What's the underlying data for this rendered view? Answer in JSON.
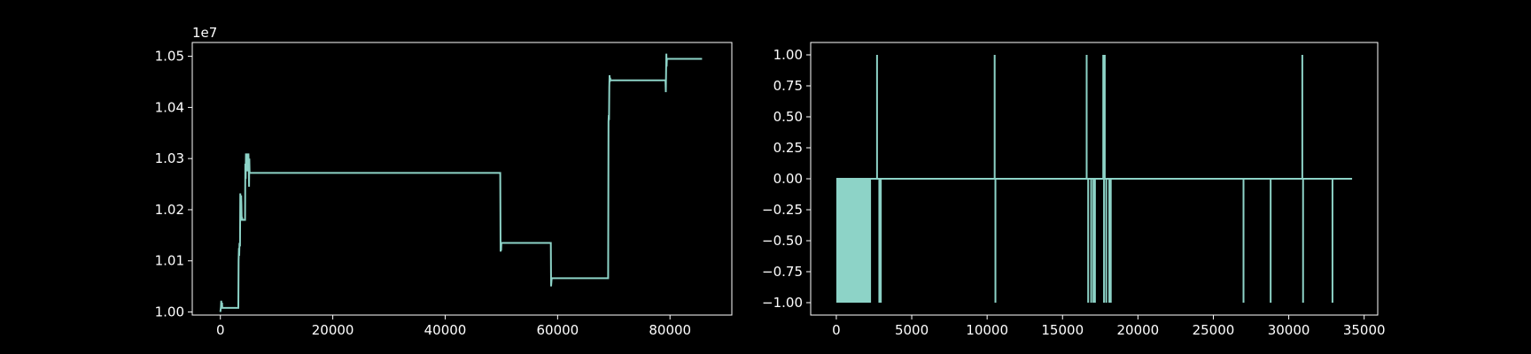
{
  "chart_data": [
    {
      "type": "line",
      "color": "#8dd3c7",
      "grid": false,
      "xlim": [
        -5000,
        91000
      ],
      "ylim": [
        9994000,
        10527000
      ],
      "y_offset_label": "1e7",
      "x_ticks": [
        0,
        20000,
        40000,
        60000,
        80000
      ],
      "x_tick_labels": [
        "0",
        "20000",
        "40000",
        "60000",
        "80000"
      ],
      "y_ticks": [
        10000000,
        10100000,
        10200000,
        10300000,
        10400000,
        10500000
      ],
      "y_tick_labels": [
        "1.00",
        "1.01",
        "1.02",
        "1.03",
        "1.04",
        "1.05"
      ],
      "series": [
        {
          "x": [
            0,
            100,
            150,
            250,
            300,
            350,
            3200,
            3250,
            3300,
            3350,
            3400,
            3450,
            3500,
            3550,
            3600,
            3700,
            3750,
            3800,
            3850,
            3900,
            3950,
            4000,
            4400,
            4450,
            4500,
            4550,
            4600,
            4650,
            4700,
            4750,
            4800,
            4850,
            4900,
            5000,
            5050,
            5100,
            5150,
            5200,
            5250,
            5300,
            5350,
            5400,
            5450,
            5500,
            5550,
            49800,
            49850,
            49900,
            49950,
            50000,
            58800,
            58850,
            58900,
            58950,
            59000,
            69000,
            69050,
            69100,
            69150,
            69200,
            69250,
            69300,
            69350,
            69400,
            69450,
            69500,
            79200,
            79250,
            79300,
            79350,
            79400,
            79450,
            79500,
            79550,
            79600,
            85700
          ],
          "y": [
            10000000,
            10010000,
            10022000,
            10008000,
            10018000,
            10008000,
            10008000,
            10100000,
            10125000,
            10110000,
            10135000,
            10130000,
            10130000,
            10232000,
            10200000,
            10228000,
            10210000,
            10180000,
            10180000,
            10182000,
            10180000,
            10180000,
            10180000,
            10290000,
            10260000,
            10310000,
            10300000,
            10300000,
            10310000,
            10275000,
            10300000,
            10305000,
            10285000,
            10310000,
            10280000,
            10245000,
            10300000,
            10272000,
            10272000,
            10272000,
            10272000,
            10272000,
            10272000,
            10272000,
            10272000,
            10272000,
            10118000,
            10132000,
            10120000,
            10135000,
            10135000,
            10050000,
            10060000,
            10066000,
            10066000,
            10066000,
            10372000,
            10385000,
            10375000,
            10440000,
            10463000,
            10450000,
            10458000,
            10453000,
            10453000,
            10453000,
            10453000,
            10430000,
            10470000,
            10505000,
            10480000,
            10495000,
            10495000,
            10495000,
            10495000,
            10495000
          ]
        }
      ]
    },
    {
      "type": "line",
      "color": "#8dd3c7",
      "grid": false,
      "xlim": [
        -1700,
        35900
      ],
      "ylim": [
        -1.1,
        1.1
      ],
      "x_ticks": [
        0,
        5000,
        10000,
        15000,
        20000,
        25000,
        30000,
        35000
      ],
      "x_tick_labels": [
        "0",
        "5000",
        "10000",
        "15000",
        "20000",
        "25000",
        "30000",
        "35000"
      ],
      "y_ticks": [
        1.0,
        0.75,
        0.5,
        0.25,
        0.0,
        -0.25,
        -0.5,
        -0.75,
        -1.0
      ],
      "y_tick_labels": [
        "1.00",
        "0.75",
        "0.50",
        "0.25",
        "0.00",
        "−0.25",
        "−0.50",
        "−0.75",
        "−1.00"
      ],
      "filled_band": {
        "x_start": 0,
        "x_end": 2300,
        "y_low": -1.0,
        "y_high": 0.0
      },
      "spikes": [
        {
          "x": 2700,
          "y": 1
        },
        {
          "x": 2850,
          "y": -1
        },
        {
          "x": 2950,
          "y": -1
        },
        {
          "x": 10500,
          "y": 1
        },
        {
          "x": 10550,
          "y": -1
        },
        {
          "x": 16600,
          "y": 1
        },
        {
          "x": 16700,
          "y": -1
        },
        {
          "x": 16900,
          "y": -1
        },
        {
          "x": 17050,
          "y": -1
        },
        {
          "x": 17150,
          "y": -1
        },
        {
          "x": 17700,
          "y": 1
        },
        {
          "x": 17750,
          "y": -1
        },
        {
          "x": 17800,
          "y": 1
        },
        {
          "x": 17900,
          "y": -1
        },
        {
          "x": 18100,
          "y": -1
        },
        {
          "x": 18200,
          "y": -1
        },
        {
          "x": 27000,
          "y": -1
        },
        {
          "x": 28800,
          "y": -1
        },
        {
          "x": 30900,
          "y": 1
        },
        {
          "x": 30950,
          "y": -1
        },
        {
          "x": 32900,
          "y": -1
        }
      ],
      "baseline": {
        "x_start": 0,
        "x_end": 34200,
        "y": 0.0
      }
    }
  ]
}
